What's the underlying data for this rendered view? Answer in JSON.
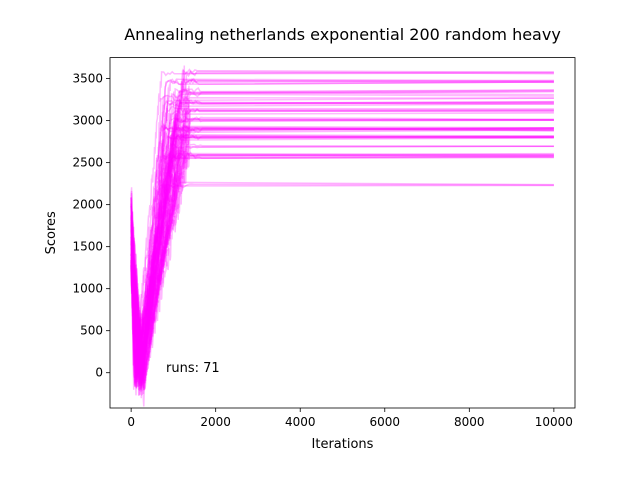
{
  "chart_data": {
    "type": "line",
    "title": "Annealing netherlands exponential 200 random heavy",
    "xlabel": "Iterations",
    "ylabel": "Scores",
    "xlim": [
      -500,
      10500
    ],
    "ylim": [
      -420,
      3750
    ],
    "xticks": [
      0,
      2000,
      4000,
      6000,
      8000,
      10000
    ],
    "yticks": [
      0,
      500,
      1000,
      1500,
      2000,
      2500,
      3000,
      3500
    ],
    "grid": false,
    "line_color": "#ff00ff",
    "run_count": 71,
    "annotation": "runs: 71",
    "plateau_scores": [
      2230,
      2560,
      2580,
      2600,
      2700,
      2790,
      2800,
      2810,
      2880,
      2900,
      2910,
      2920,
      3000,
      3010,
      3020,
      3100,
      3120,
      3130,
      3200,
      3210,
      3230,
      3260,
      3300,
      3340,
      3370,
      3450,
      3460,
      3470,
      3560,
      3570
    ],
    "iterations_end": 10000
  }
}
